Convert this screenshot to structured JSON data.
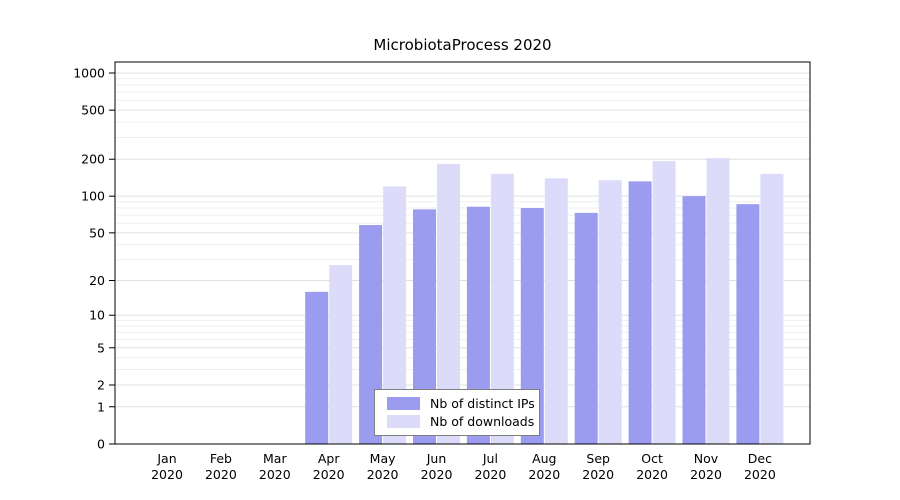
{
  "chart_data": {
    "type": "bar",
    "title": "MicrobiotaProcess 2020",
    "xlabel": "",
    "ylabel": "",
    "year_label": "2020",
    "categories": [
      "Jan",
      "Feb",
      "Mar",
      "Apr",
      "May",
      "Jun",
      "Jul",
      "Aug",
      "Sep",
      "Oct",
      "Nov",
      "Dec"
    ],
    "series": [
      {
        "name": "Nb of distinct IPs",
        "color": "#9b9bf0",
        "values": [
          0,
          0,
          0,
          16,
          58,
          78,
          82,
          80,
          73,
          132,
          100,
          86
        ]
      },
      {
        "name": "Nb of downloads",
        "color": "#dcdcfa",
        "values": [
          0,
          0,
          0,
          27,
          120,
          183,
          152,
          140,
          135,
          193,
          204,
          152
        ]
      }
    ],
    "y_ticks": [
      0,
      1,
      2,
      5,
      10,
      20,
      50,
      100,
      200,
      500,
      1000
    ],
    "y_minor": [
      3,
      4,
      6,
      7,
      8,
      9,
      30,
      40,
      60,
      70,
      80,
      90,
      300,
      400,
      600,
      700,
      800,
      900
    ],
    "scale": "log10(value+1)",
    "ylim": [
      0,
      1000
    ],
    "grid": true,
    "legend_position": "bottom-center-inside",
    "colors": {
      "bar_distinct_ips": "#9b9bf0",
      "bar_downloads": "#dcdcfa",
      "major_grid": "#e0e0e0",
      "minor_grid": "#efefef",
      "axis": "#000000"
    }
  }
}
